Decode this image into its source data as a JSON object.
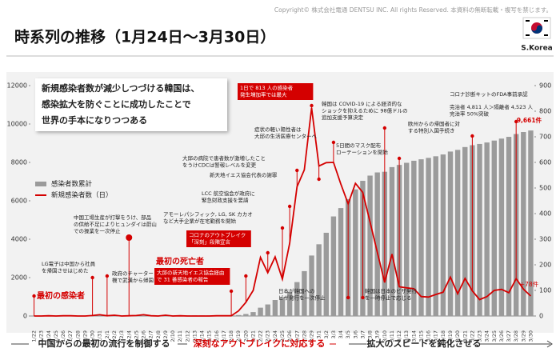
{
  "copyright": "Copyright© 株式会社電通 DENTSU INC. All rights Reserved. 本資料の無断転載・複写を禁じます。",
  "title": "時系列の推移（1月24日～3月30日）",
  "country": "S.Korea",
  "headline": [
    "新規感染者数が減少しつづける韓国は、",
    "感染拡大を防ぐことに成功したことで",
    "世界の手本になりつつある"
  ],
  "phases": [
    "中国からの最初の流行を制御する",
    "深刻なアウトブレイクに対応する",
    "拡大のスピードを鈍化させる"
  ],
  "annotations": [
    {
      "lines": [
        "最初の感染者"
      ]
    },
    {
      "lines": [
        "LG電子は中国から社員",
        "を帰国させはじめた"
      ]
    },
    {
      "lines": [
        "中国工場生産が打撃をうけ、部品",
        "の供給不足によりヒュンダイは蔚山",
        "での操業を一次停止"
      ]
    },
    {
      "lines": [
        "政府のチャーター",
        "機で武漢から帰国"
      ]
    },
    {
      "lines": [
        "最初の死亡者"
      ]
    },
    {
      "lines": [
        "アモーレパシフィック, LG, SK カカオ",
        "など大手企業が在宅勤務を開始"
      ]
    },
    {
      "lines": [
        "コロナのアウトブレイク",
        "「深刻」段階宣言"
      ]
    },
    {
      "lines": [
        "大邱の新天地イエス協会経由",
        "で 31 番感染者の報告"
      ]
    },
    {
      "lines": [
        "LCC 航空協会が政府に",
        "緊急財政支援を要請"
      ]
    },
    {
      "lines": [
        "大邱の病院で患者数が激増したこと",
        "をうけCDCは警報レベルを変更"
      ]
    },
    {
      "lines": [
        "新天地イエス協会代表の謝罪"
      ]
    },
    {
      "lines": [
        "症状の軽い陽性者は",
        "大邱の生活医療センターへ"
      ]
    },
    {
      "lines": [
        "1日で 813 人の感染者",
        "発生増加率では最大"
      ]
    },
    {
      "lines": [
        "日本が韓国への",
        "ビザ発行を一次停止"
      ]
    },
    {
      "lines": [
        "韓国は COVID-19 による経済的な",
        "ショックを抑えるために 98億ドルの",
        "追加支援予算決定"
      ]
    },
    {
      "lines": [
        "5日間のマスク配布",
        "ローテーションを開始"
      ]
    },
    {
      "lines": [
        "韓国は日本のビザ発行",
        "を一時停止で応じる"
      ]
    },
    {
      "lines": [
        "欧州からの帰国者に対",
        "する特別入国手続き"
      ]
    },
    {
      "lines": [
        "コロナ診断キットのFDA事前承認"
      ]
    },
    {
      "lines": [
        "完治者 4,811 人＞隔離者 4,523 人",
        "完治率 50%突破"
      ]
    }
  ],
  "chart_data": {
    "type": "bar_line",
    "categories": [
      "1/22",
      "1/23",
      "1/24",
      "1/25",
      "1/26",
      "1/27",
      "1/28",
      "1/29",
      "1/30",
      "1/31",
      "2/1",
      "2/2",
      "2/3",
      "2/4",
      "2/5",
      "2/6",
      "2/7",
      "2/8",
      "2/9",
      "2/10",
      "2/11",
      "2/12",
      "2/13",
      "2/14",
      "2/15",
      "2/16",
      "2/17",
      "2/18",
      "2/19",
      "2/20",
      "2/21",
      "2/22",
      "2/23",
      "2/24",
      "2/25",
      "2/26",
      "2/27",
      "2/28",
      "2/29",
      "3/1",
      "3/2",
      "3/3",
      "3/4",
      "3/5",
      "3/6",
      "3/7",
      "3/8",
      "3/9",
      "3/10",
      "3/11",
      "3/12",
      "3/13",
      "3/14",
      "3/15",
      "3/16",
      "3/17",
      "3/18",
      "3/19",
      "3/20",
      "3/21",
      "3/22",
      "3/23",
      "3/24",
      "3/25",
      "3/26",
      "3/27",
      "3/28",
      "3/29",
      "3/30"
    ],
    "series": [
      {
        "name": "感染者数累計",
        "type": "bar",
        "color": "#9b9b9b",
        "values": [
          1,
          1,
          2,
          2,
          3,
          4,
          4,
          4,
          6,
          11,
          12,
          15,
          15,
          16,
          18,
          23,
          24,
          24,
          27,
          27,
          28,
          28,
          28,
          28,
          28,
          29,
          30,
          31,
          51,
          104,
          204,
          433,
          602,
          833,
          977,
          1261,
          1766,
          2337,
          3150,
          3736,
          4335,
          5186,
          5621,
          6088,
          6593,
          7041,
          7313,
          7478,
          7513,
          7755,
          7869,
          7979,
          8086,
          8162,
          8236,
          8320,
          8413,
          8565,
          8652,
          8799,
          8897,
          8961,
          9037,
          9137,
          9241,
          9332,
          9478,
          9583,
          9661
        ],
        "value_labels": [
          null,
          null,
          null,
          null,
          null,
          null,
          null,
          null,
          null,
          null,
          null,
          null,
          null,
          null,
          null,
          null,
          null,
          null,
          null,
          null,
          null,
          null,
          null,
          null,
          null,
          null,
          null,
          null,
          null,
          null,
          null,
          null,
          null,
          null,
          null,
          null,
          null,
          null,
          null,
          null,
          null,
          null,
          null,
          null,
          null,
          null,
          null,
          null,
          null,
          null,
          null,
          null,
          null,
          null,
          null,
          null,
          null,
          null,
          null,
          null,
          null,
          null,
          null,
          null,
          null,
          null,
          null,
          null,
          "9,661件"
        ]
      },
      {
        "name": "新規感染者数（日）",
        "type": "line",
        "axis": "y2",
        "color": "#d40000",
        "values": [
          0,
          0,
          1,
          0,
          1,
          1,
          0,
          0,
          2,
          5,
          1,
          3,
          0,
          1,
          2,
          5,
          1,
          0,
          3,
          0,
          1,
          0,
          0,
          0,
          0,
          1,
          1,
          1,
          20,
          53,
          100,
          229,
          169,
          231,
          144,
          284,
          505,
          571,
          813,
          586,
          599,
          600,
          516,
          438,
          518,
          483,
          367,
          248,
          131,
          242,
          114,
          110,
          107,
          76,
          74,
          84,
          93,
          152,
          87,
          147,
          98,
          64,
          76,
          100,
          104,
          91,
          146,
          105,
          78
        ],
        "value_labels": [
          null,
          null,
          null,
          null,
          null,
          null,
          null,
          null,
          null,
          null,
          null,
          null,
          null,
          null,
          null,
          null,
          null,
          null,
          null,
          null,
          null,
          null,
          null,
          null,
          null,
          null,
          null,
          null,
          null,
          null,
          null,
          null,
          null,
          null,
          null,
          null,
          null,
          null,
          null,
          null,
          null,
          null,
          null,
          null,
          null,
          null,
          null,
          null,
          null,
          null,
          null,
          null,
          null,
          null,
          null,
          null,
          null,
          null,
          null,
          null,
          null,
          null,
          null,
          null,
          null,
          null,
          null,
          null,
          "+78件"
        ]
      }
    ],
    "ylim": [
      0,
      12000
    ],
    "yticks": [
      0,
      2000,
      4000,
      6000,
      8000,
      10000,
      12000
    ],
    "y2lim": [
      0,
      900
    ],
    "y2ticks": [
      0,
      100,
      200,
      300,
      400,
      500,
      600,
      700,
      800,
      900
    ],
    "grid": false,
    "legend": "upper left"
  }
}
